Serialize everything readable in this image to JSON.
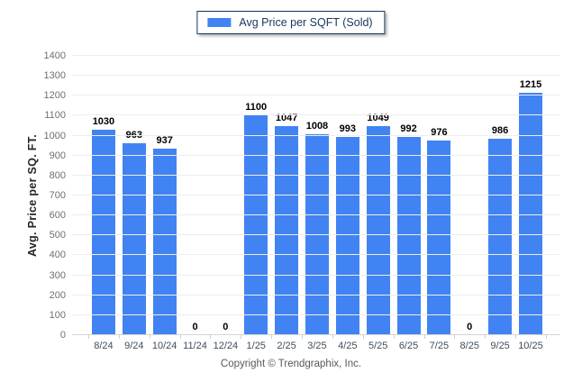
{
  "legend": {
    "label": "Avg Price per SQFT (Sold)",
    "swatch_color": "#4183F2"
  },
  "y_axis": {
    "title": "Avg. Price per SQ. FT.",
    "min": 0,
    "max": 1400,
    "tick_step": 100
  },
  "footer": {
    "copyright": "Copyright © Trendgraphix, Inc."
  },
  "colors": {
    "bar": "#4183F2",
    "gridline": "#ededed",
    "axis_line": "#d4d4d4",
    "boundary_tick": "#cfcfcf",
    "y_tick_label": "#6f6f6f",
    "x_tick_label": "#3f4e5e",
    "value_label": "#000000",
    "legend_border": "#17375e",
    "legend_text": "#17375e",
    "footer_text": "#595959",
    "background": "#ffffff"
  },
  "chart_data": {
    "type": "bar",
    "title": "",
    "series_name": "Avg Price per SQFT (Sold)",
    "categories": [
      "8/24",
      "9/24",
      "10/24",
      "11/24",
      "12/24",
      "1/25",
      "2/25",
      "3/25",
      "4/25",
      "5/25",
      "6/25",
      "7/25",
      "8/25",
      "9/25",
      "10/25"
    ],
    "values": [
      1030,
      963,
      937,
      0,
      0,
      1100,
      1047,
      1008,
      993,
      1049,
      992,
      976,
      0,
      986,
      1215
    ],
    "xlabel": "",
    "ylabel": "Avg. Price per SQ. FT.",
    "ylim": [
      0,
      1400
    ],
    "ytick_interval": 100,
    "grid": true,
    "legend_position": "top-center",
    "bar_color": "#4183F2",
    "value_labels_shown": true
  }
}
